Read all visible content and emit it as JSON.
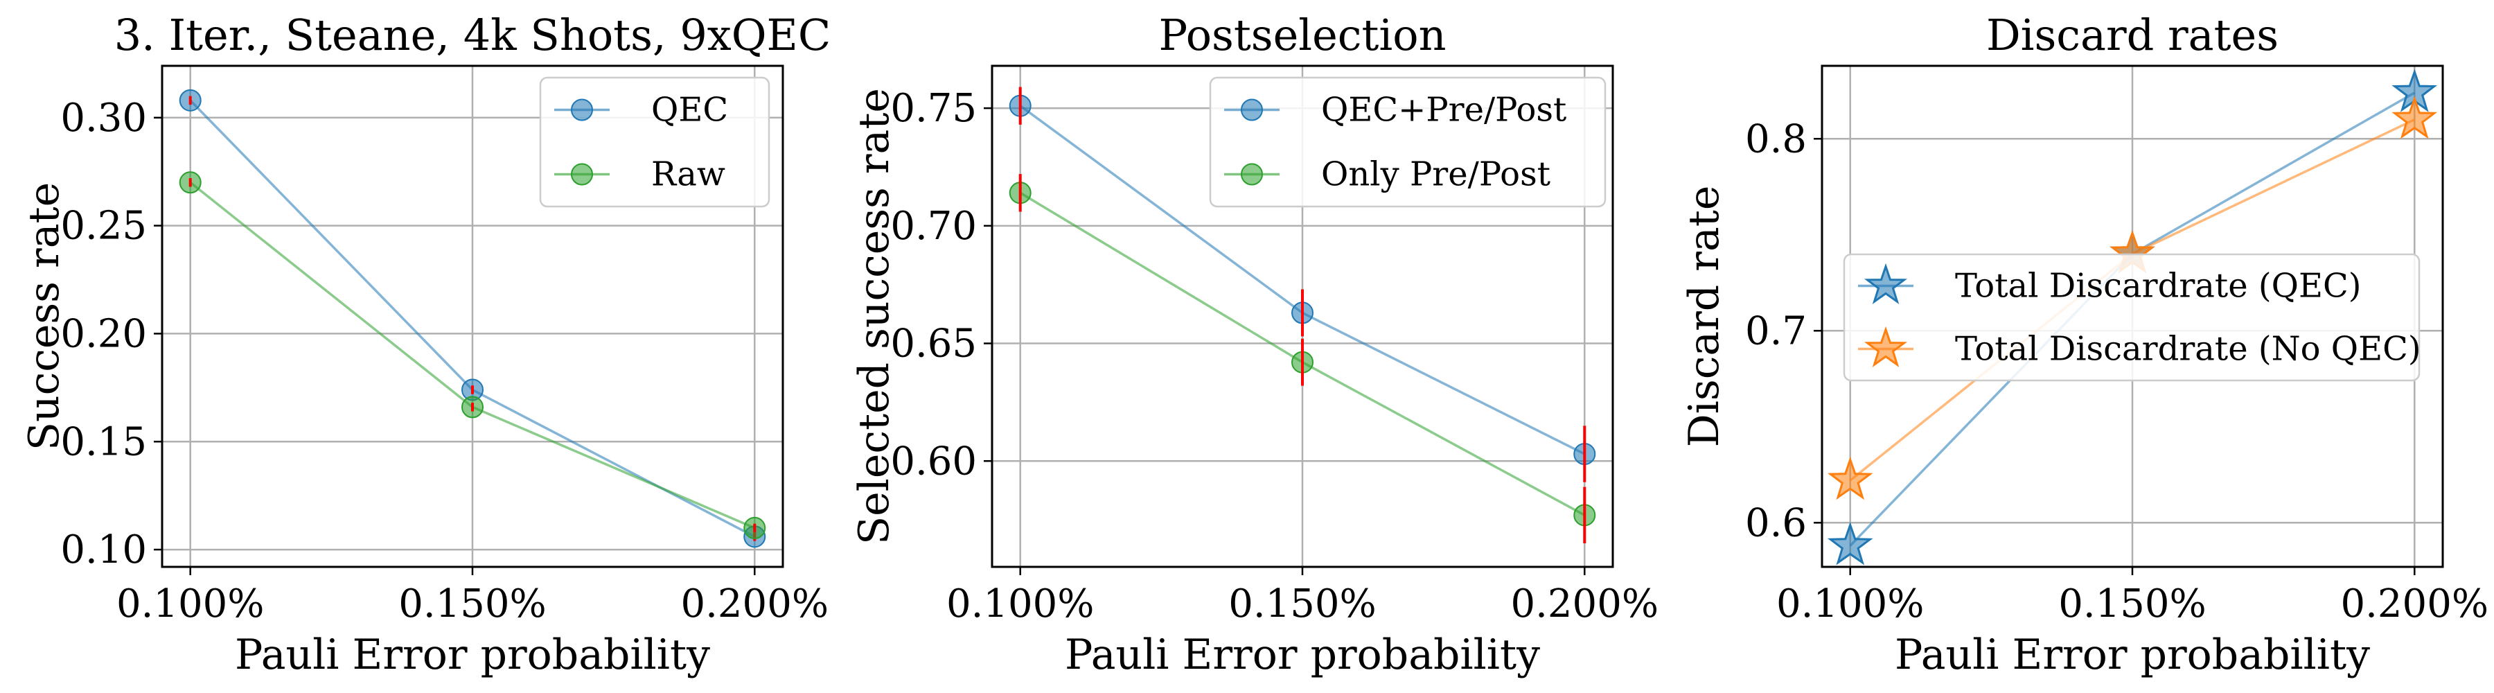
{
  "chart_data": [
    {
      "type": "line",
      "title": "3. Iter., Steane, 4k Shots, 9xQEC",
      "xlabel": "Pauli Error probability",
      "ylabel": "Success rate",
      "x": [
        0.001,
        0.0015,
        0.002
      ],
      "x_tick_labels": [
        "0.100%",
        "0.150%",
        "0.200%"
      ],
      "xlim": [
        0.00095,
        0.00205
      ],
      "ylim": [
        0.092,
        0.324
      ],
      "y_ticks": [
        0.1,
        0.15,
        0.2,
        0.25,
        0.3
      ],
      "y_tick_labels": [
        "0.10",
        "0.15",
        "0.20",
        "0.25",
        "0.30"
      ],
      "grid": true,
      "legend_position": "upper right",
      "series": [
        {
          "name": "QEC",
          "color": "#1f77b4",
          "marker": "circle",
          "values": [
            0.308,
            0.174,
            0.106
          ],
          "error": [
            0.002,
            0.002,
            0.002
          ]
        },
        {
          "name": "Raw",
          "color": "#2ca02c",
          "marker": "circle",
          "values": [
            0.27,
            0.166,
            0.11
          ],
          "error": [
            0.002,
            0.002,
            0.002
          ]
        }
      ]
    },
    {
      "type": "line",
      "title": "Postselection",
      "xlabel": "Pauli Error probability",
      "ylabel": "Selected success rate",
      "x": [
        0.001,
        0.0015,
        0.002
      ],
      "x_tick_labels": [
        "0.100%",
        "0.150%",
        "0.200%"
      ],
      "xlim": [
        0.00095,
        0.00205
      ],
      "ylim": [
        0.555,
        0.768
      ],
      "y_ticks": [
        0.6,
        0.65,
        0.7,
        0.75
      ],
      "y_tick_labels": [
        "0.60",
        "0.65",
        "0.70",
        "0.75"
      ],
      "grid": true,
      "legend_position": "upper right",
      "series": [
        {
          "name": "QEC+Pre/Post",
          "color": "#1f77b4",
          "marker": "circle",
          "values": [
            0.751,
            0.663,
            0.603
          ],
          "error": [
            0.008,
            0.01,
            0.012
          ]
        },
        {
          "name": "Only Pre/Post",
          "color": "#2ca02c",
          "marker": "circle",
          "values": [
            0.714,
            0.642,
            0.577
          ],
          "error": [
            0.008,
            0.01,
            0.012
          ]
        }
      ]
    },
    {
      "type": "line",
      "title": "Discard rates",
      "xlabel": "Pauli Error probability",
      "ylabel": "Discard rate",
      "x": [
        0.001,
        0.0015,
        0.002
      ],
      "x_tick_labels": [
        "0.100%",
        "0.150%",
        "0.200%"
      ],
      "xlim": [
        0.00095,
        0.00205
      ],
      "ylim": [
        0.577,
        0.838
      ],
      "y_ticks": [
        0.6,
        0.7,
        0.8
      ],
      "y_tick_labels": [
        "0.6",
        "0.7",
        "0.8"
      ],
      "grid": true,
      "legend_position": "center right",
      "series": [
        {
          "name": "Total Discardrate (QEC)",
          "color": "#1f77b4",
          "marker": "star",
          "values": [
            0.588,
            0.74,
            0.824
          ]
        },
        {
          "name": "Total Discardrate (No QEC)",
          "color": "#ff7f0e",
          "marker": "star",
          "values": [
            0.622,
            0.74,
            0.81
          ]
        }
      ]
    }
  ]
}
